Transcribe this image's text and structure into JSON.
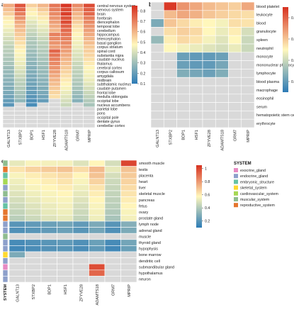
{
  "panels": [
    "a",
    "b",
    "c"
  ],
  "colors": {
    "high": "#d7301f",
    "mid": "#fff7bc",
    "low": "#2c7bb6",
    "missing": "#d9d9d9",
    "grid": "#ffffff"
  },
  "chart_data": [
    {
      "type": "heatmap",
      "panel": "a",
      "title": "",
      "xlabel": "",
      "ylabel": "",
      "columns": [
        "GALNT13",
        "STXBP2",
        "BDP1",
        "HSF1",
        "ZFYVE28",
        "ADAMTS18",
        "GRM7",
        "MPRIP"
      ],
      "rows": [
        "central nervous system",
        "nervous system",
        "brain",
        "forebrain",
        "diencephalon",
        "temporal lobe",
        "cerebellum",
        "hippocampus",
        "telencephalon",
        "basal ganglion",
        "corpus striatum",
        "spinal cord",
        "substantia nigra",
        "caudate nucleus",
        "thalamus",
        "cerebral cortex",
        "corpus callosum",
        "amygdala",
        "midbrain",
        "subthalamic nucleus",
        "caudate putamen",
        "frontal lobe",
        "medulla oblongata",
        "occipital lobe",
        "nucleus accumbens",
        "parietal lobe",
        "pons",
        "occipital pole",
        "dentate gyrus",
        "cerebellar cortex"
      ],
      "colorbar": {
        "min": 0.1,
        "max": 0.85,
        "ticks": [
          0.1,
          0.2,
          0.3,
          0.4,
          0.5,
          0.6,
          0.7,
          0.8
        ]
      },
      "values": [
        [
          0.62,
          0.78,
          0.55,
          0.6,
          0.72,
          0.84,
          0.68,
          0.8
        ],
        [
          0.58,
          0.74,
          0.5,
          0.56,
          0.7,
          0.8,
          0.64,
          0.76
        ],
        [
          0.55,
          0.7,
          0.48,
          0.52,
          0.68,
          0.82,
          0.6,
          0.74
        ],
        [
          0.5,
          0.66,
          0.45,
          0.5,
          0.66,
          0.78,
          0.58,
          0.7
        ],
        [
          0.48,
          0.62,
          0.42,
          0.46,
          0.64,
          0.8,
          0.55,
          0.68
        ],
        [
          0.46,
          0.6,
          0.4,
          0.44,
          0.62,
          0.76,
          0.52,
          0.66
        ],
        [
          0.44,
          0.58,
          0.38,
          0.42,
          0.6,
          0.74,
          0.5,
          0.64
        ],
        [
          0.42,
          0.56,
          0.36,
          0.4,
          0.7,
          0.72,
          0.48,
          0.62
        ],
        [
          0.4,
          0.54,
          0.34,
          0.38,
          0.68,
          0.7,
          0.46,
          0.6
        ],
        [
          0.38,
          0.52,
          0.33,
          0.36,
          0.66,
          0.68,
          0.45,
          0.58
        ],
        [
          0.36,
          0.5,
          0.32,
          0.35,
          0.64,
          0.66,
          0.44,
          0.56
        ],
        [
          0.35,
          0.48,
          0.3,
          0.34,
          0.75,
          0.64,
          0.42,
          0.55
        ],
        [
          0.34,
          0.46,
          0.29,
          0.33,
          0.72,
          0.62,
          0.41,
          0.54
        ],
        [
          0.33,
          0.45,
          0.28,
          0.32,
          0.7,
          0.6,
          0.4,
          0.52
        ],
        [
          0.32,
          0.44,
          0.27,
          0.31,
          0.68,
          0.58,
          0.38,
          0.5
        ],
        [
          0.3,
          0.42,
          0.26,
          0.3,
          0.66,
          0.56,
          0.37,
          0.48
        ],
        [
          0.29,
          0.4,
          0.25,
          0.29,
          0.64,
          0.54,
          0.36,
          0.46
        ],
        [
          0.28,
          0.38,
          0.24,
          0.28,
          0.62,
          0.52,
          0.35,
          0.45
        ],
        [
          0.27,
          0.36,
          0.23,
          0.27,
          0.6,
          0.5,
          0.34,
          0.44
        ],
        [
          0.26,
          0.35,
          0.22,
          0.26,
          0.58,
          0.48,
          0.33,
          0.42
        ],
        [
          0.25,
          0.34,
          0.21,
          0.25,
          0.56,
          0.46,
          0.32,
          0.4
        ],
        [
          0.24,
          0.32,
          0.2,
          0.24,
          0.54,
          0.44,
          0.3,
          0.38
        ],
        [
          0.22,
          0.3,
          0.18,
          0.22,
          0.52,
          0.42,
          0.28,
          0.36
        ],
        [
          0.2,
          0.28,
          0.16,
          0.2,
          null,
          0.4,
          0.26,
          0.34
        ],
        [
          0.18,
          null,
          0.15,
          null,
          null,
          0.38,
          null,
          0.32
        ],
        [
          null,
          null,
          null,
          null,
          null,
          null,
          null,
          null
        ],
        [
          null,
          null,
          null,
          null,
          null,
          null,
          null,
          null
        ],
        [
          null,
          null,
          null,
          null,
          null,
          null,
          null,
          null
        ],
        [
          null,
          null,
          null,
          null,
          null,
          null,
          null,
          null
        ],
        [
          null,
          null,
          null,
          null,
          null,
          null,
          null,
          null
        ]
      ]
    },
    {
      "type": "heatmap",
      "panel": "b",
      "title": "",
      "xlabel": "",
      "ylabel": "",
      "columns": [
        "GALNT13",
        "STXBP2",
        "BDP1",
        "HSF1",
        "ZFYVE28",
        "ADAMTS18",
        "GRM7",
        "MPRIP"
      ],
      "rows": [
        "blood platelet",
        "leukocyte",
        "blood",
        "granulocyte",
        "spleen",
        "neutrophil",
        "monocyte",
        "mononuclear phagocyte",
        "lymphocyte",
        "blood plasma",
        "macrophage",
        "eosinophil",
        "serum",
        "hematopoietic stem cell",
        "erythrocyte"
      ],
      "colorbar": {
        "min": 0.1,
        "max": 0.9,
        "ticks": [
          0.2,
          0.4,
          0.6,
          0.8
        ]
      },
      "values": [
        [
          null,
          0.88,
          0.7,
          0.66,
          0.62,
          0.6,
          0.58,
          0.66
        ],
        [
          null,
          0.62,
          0.66,
          0.64,
          0.6,
          0.58,
          0.56,
          0.55
        ],
        [
          0.25,
          0.6,
          0.56,
          0.52,
          0.5,
          0.48,
          0.55,
          0.54
        ],
        [
          null,
          0.55,
          0.58,
          0.56,
          0.5,
          0.46,
          0.52,
          0.42
        ],
        [
          0.3,
          0.52,
          0.56,
          0.54,
          0.48,
          0.44,
          0.5,
          0.4
        ],
        [
          null,
          0.5,
          0.48,
          0.46,
          0.44,
          0.42,
          0.46,
          0.4
        ],
        [
          null,
          null,
          0.22,
          0.2,
          0.2,
          0.22,
          null,
          null
        ],
        [
          null,
          null,
          0.22,
          0.2,
          0.2,
          0.24,
          null,
          null
        ],
        [
          null,
          null,
          0.26,
          0.24,
          0.22,
          0.26,
          null,
          null
        ],
        [
          null,
          null,
          null,
          null,
          null,
          null,
          null,
          null
        ],
        [
          null,
          null,
          null,
          null,
          null,
          null,
          null,
          null
        ],
        [
          null,
          null,
          null,
          null,
          null,
          null,
          null,
          null
        ],
        [
          null,
          null,
          null,
          null,
          null,
          null,
          null,
          null
        ],
        [
          null,
          null,
          null,
          null,
          null,
          null,
          null,
          null
        ],
        [
          null,
          null,
          null,
          null,
          null,
          null,
          null,
          null
        ]
      ]
    },
    {
      "type": "heatmap",
      "panel": "c",
      "title": "",
      "xlabel": "",
      "ylabel": "",
      "columns": [
        "GALNT13",
        "STXBP2",
        "BDP1",
        "HSF1",
        "ZFYVE28",
        "ADAMTS18",
        "GRM7",
        "MPRIP"
      ],
      "rows": [
        "smooth muscle",
        "testis",
        "placenta",
        "heart",
        "liver",
        "skeletal muscle",
        "pancreas",
        "fetus",
        "ovary",
        "prostate gland",
        "lymph node",
        "adrenal gland",
        "muscle",
        "thyroid gland",
        "hypophysis",
        "bone marrow",
        "dendritic cell",
        "submandibular gland",
        "hypothalamus",
        "neuron"
      ],
      "row_system": [
        "muscular_system",
        "reproductive_system",
        "embryonic_structure",
        "cardiovascular_system",
        "endocrine_gland",
        "muscular_system",
        "endocrine_gland",
        "embryonic_structure",
        "reproductive_system",
        "reproductive_system",
        "endocrine_gland",
        "endocrine_gland",
        "muscular_system",
        "endocrine_gland",
        "endocrine_gland",
        "skeletal_system",
        "endocrine_gland",
        "exocrine_gland",
        "endocrine_gland",
        "endocrine_gland"
      ],
      "system_label": "SYSTEM",
      "legend": {
        "title": "SYSTEM",
        "entries": [
          {
            "name": "exocrine_gland",
            "color": "#e78ac3"
          },
          {
            "name": "endocrine_gland",
            "color": "#8da0cb"
          },
          {
            "name": "embryonic_structure",
            "color": "#66c2a5"
          },
          {
            "name": "skeletal_system",
            "color": "#ffd92f"
          },
          {
            "name": "cardiovascular_system",
            "color": "#a6d854"
          },
          {
            "name": "muscular_system",
            "color": "#8fbc8f"
          },
          {
            "name": "reproductive_system",
            "color": "#e5762f"
          }
        ]
      },
      "colorbar": {
        "min": 0.1,
        "max": 1.05,
        "ticks": [
          0.2,
          0.4,
          0.6,
          0.8,
          1
        ]
      },
      "values": [
        [
          0.52,
          0.56,
          0.55,
          0.55,
          0.5,
          0.58,
          0.48,
          1.0
        ],
        [
          0.62,
          0.66,
          0.68,
          0.7,
          0.64,
          0.72,
          0.52,
          0.7
        ],
        [
          0.56,
          0.6,
          0.62,
          0.64,
          0.58,
          0.7,
          0.48,
          0.68
        ],
        [
          0.54,
          0.58,
          0.6,
          0.62,
          0.56,
          0.66,
          0.46,
          0.66
        ],
        [
          0.52,
          0.56,
          0.58,
          0.6,
          0.54,
          0.62,
          0.45,
          0.64
        ],
        [
          0.5,
          0.54,
          0.56,
          0.58,
          0.52,
          0.6,
          0.44,
          0.62
        ],
        [
          0.48,
          0.52,
          0.55,
          0.56,
          0.5,
          0.58,
          0.43,
          0.6
        ],
        [
          0.46,
          0.5,
          0.53,
          0.55,
          0.48,
          0.56,
          0.42,
          0.58
        ],
        [
          0.44,
          0.48,
          0.52,
          0.54,
          0.46,
          0.55,
          0.4,
          0.56
        ],
        [
          0.42,
          0.46,
          0.5,
          0.52,
          0.44,
          0.54,
          0.38,
          0.55
        ],
        [
          0.2,
          0.22,
          0.24,
          0.26,
          0.22,
          0.28,
          0.2,
          0.3
        ],
        [
          0.18,
          0.2,
          0.22,
          0.24,
          0.2,
          0.26,
          0.18,
          0.28
        ],
        [
          null,
          null,
          null,
          null,
          null,
          null,
          null,
          null
        ],
        [
          0.16,
          0.18,
          0.2,
          0.22,
          0.18,
          0.24,
          0.16,
          0.26
        ],
        [
          0.15,
          0.17,
          0.19,
          0.2,
          0.17,
          0.22,
          0.15,
          0.24
        ],
        [
          0.28,
          null,
          null,
          null,
          null,
          null,
          null,
          null
        ],
        [
          null,
          null,
          null,
          null,
          null,
          null,
          null,
          null
        ],
        [
          null,
          null,
          null,
          null,
          null,
          0.98,
          null,
          null
        ],
        [
          null,
          null,
          null,
          null,
          null,
          0.92,
          null,
          null
        ],
        [
          null,
          null,
          null,
          null,
          null,
          null,
          null,
          null
        ]
      ]
    }
  ]
}
